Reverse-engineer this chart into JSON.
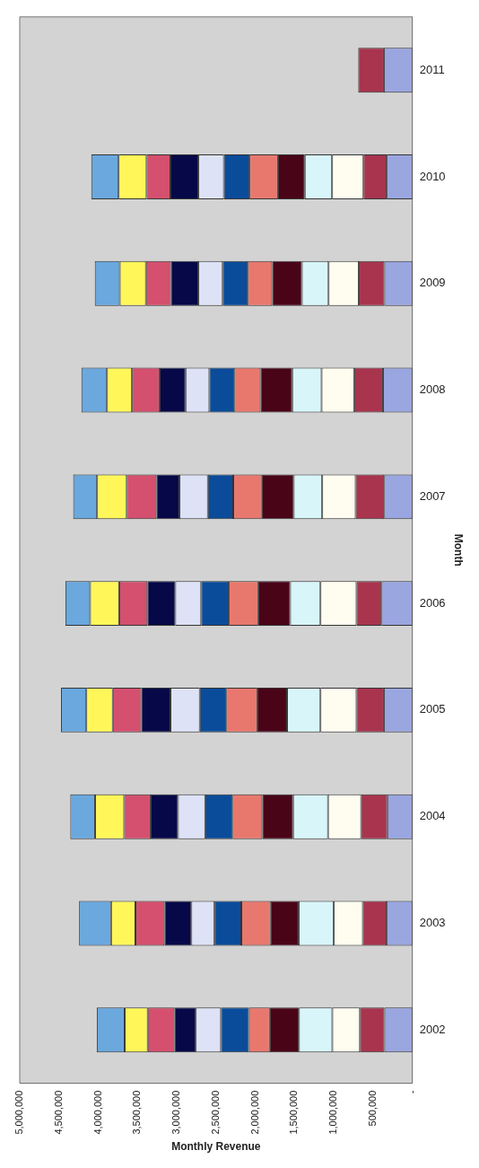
{
  "chart_data": {
    "type": "bar",
    "orientation": "horizontal",
    "stacked": true,
    "xlabel": "Monthly Revenue",
    "ylabel": "Month",
    "categories": [
      "2011",
      "2010",
      "2009",
      "2008",
      "2007",
      "2006",
      "2005",
      "2004",
      "2003",
      "2002"
    ],
    "xlim": [
      5000000,
      0
    ],
    "xticks": [
      {
        "value": 5000000,
        "label": "5,000,000"
      },
      {
        "value": 4500000,
        "label": "4,500,000"
      },
      {
        "value": 4000000,
        "label": "4,000,000"
      },
      {
        "value": 3500000,
        "label": "3,500,000"
      },
      {
        "value": 3000000,
        "label": "3,000,000"
      },
      {
        "value": 2500000,
        "label": "2,500,000"
      },
      {
        "value": 2000000,
        "label": "2,000,000"
      },
      {
        "value": 1500000,
        "label": "1,500,000"
      },
      {
        "value": 1000000,
        "label": "1,000,000"
      },
      {
        "value": 500000,
        "label": "500,000"
      },
      {
        "value": 0,
        "label": "-"
      }
    ],
    "grid": false,
    "legend": false,
    "series": [
      {
        "color": "#9aa6e0",
        "values": [
          363000,
          326000,
          356000,
          374000,
          359000,
          393000,
          363000,
          319000,
          326000,
          356000
        ]
      },
      {
        "color": "#a8344e",
        "values": [
          326000,
          296000,
          325000,
          367000,
          363000,
          318000,
          348000,
          333000,
          304000,
          311000
        ]
      },
      {
        "color": "#fffdf0",
        "values": [
          null,
          400000,
          386000,
          415000,
          426000,
          459000,
          459000,
          422000,
          370000,
          352000
        ]
      },
      {
        "color": "#d8f6fa",
        "values": [
          null,
          348000,
          340000,
          374000,
          363000,
          386000,
          426000,
          445000,
          448000,
          425000
        ]
      },
      {
        "color": "#4a0418",
        "values": [
          null,
          341000,
          378000,
          403000,
          408000,
          407000,
          378000,
          392000,
          356000,
          371000
        ]
      },
      {
        "color": "#e8786e",
        "values": [
          null,
          363000,
          311000,
          334000,
          362000,
          374000,
          396000,
          378000,
          374000,
          266000
        ]
      },
      {
        "color": "#0a4c9a",
        "values": [
          null,
          326000,
          319000,
          318000,
          323000,
          352000,
          337000,
          348000,
          341000,
          356000
        ]
      },
      {
        "color": "#dde2f6",
        "values": [
          null,
          326000,
          311000,
          304000,
          363000,
          330000,
          374000,
          348000,
          296000,
          322000
        ]
      },
      {
        "color": "#060848",
        "values": [
          null,
          355000,
          348000,
          330000,
          292000,
          355000,
          371000,
          348000,
          341000,
          271000
        ]
      },
      {
        "color": "#d4506e",
        "values": [
          null,
          304000,
          319000,
          351000,
          378000,
          359000,
          363000,
          337000,
          370000,
          340000
        ]
      },
      {
        "color": "#fff75a",
        "values": [
          null,
          356000,
          333000,
          319000,
          378000,
          371000,
          337000,
          371000,
          311000,
          293000
        ]
      },
      {
        "color": "#6aa8de",
        "values": [
          null,
          348000,
          318000,
          326000,
          304000,
          315000,
          322000,
          315000,
          407000,
          356000
        ]
      }
    ]
  }
}
